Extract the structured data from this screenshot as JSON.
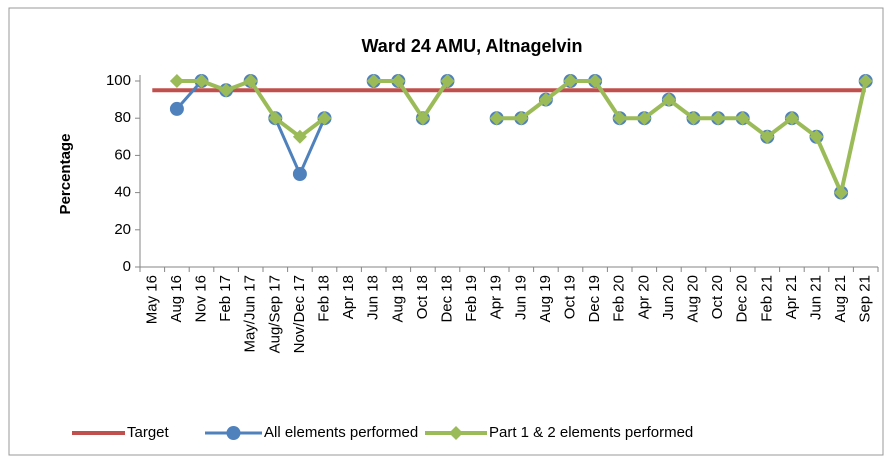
{
  "chart_data": {
    "type": "line",
    "title": "Ward 24 AMU, Altnagelvin",
    "y_label": "Percentage",
    "categories": [
      "May 16",
      "Aug 16",
      "Nov 16",
      "Feb 17",
      "May/Jun 17",
      "Aug/Sep 17",
      "Nov/Dec 17",
      "Feb 18",
      "Apr 18",
      "Jun 18",
      "Aug 18",
      "Oct 18",
      "Dec 18",
      "Feb 19",
      "Apr 19",
      "Jun 19",
      "Aug 19",
      "Oct 19",
      "Dec 19",
      "Feb 20",
      "Apr 20",
      "Jun 20",
      "Aug 20",
      "Oct 20",
      "Dec 20",
      "Feb 21",
      "Apr 21",
      "Jun 21",
      "Aug 21",
      "Sep 21"
    ],
    "series": [
      {
        "name": "Target",
        "color": "#c0504d",
        "marker": "none",
        "values": [
          95,
          95,
          95,
          95,
          95,
          95,
          95,
          95,
          95,
          95,
          95,
          95,
          95,
          95,
          95,
          95,
          95,
          95,
          95,
          95,
          95,
          95,
          95,
          95,
          95,
          95,
          95,
          95,
          95,
          95
        ]
      },
      {
        "name": "All elements performed",
        "color": "#4f81bd",
        "marker": "circle",
        "values": [
          null,
          85,
          100,
          95,
          100,
          80,
          50,
          80,
          null,
          100,
          100,
          80,
          100,
          null,
          80,
          80,
          90,
          100,
          100,
          80,
          80,
          90,
          80,
          80,
          80,
          70,
          80,
          70,
          40,
          100
        ]
      },
      {
        "name": "Part 1 & 2 elements performed",
        "color": "#9bbb59",
        "marker": "diamond",
        "values": [
          null,
          100,
          100,
          95,
          100,
          80,
          70,
          80,
          null,
          100,
          100,
          80,
          100,
          null,
          80,
          80,
          90,
          100,
          100,
          80,
          80,
          90,
          80,
          80,
          80,
          70,
          80,
          70,
          40,
          100
        ]
      }
    ],
    "ylim": [
      0,
      100
    ],
    "yticks": [
      0,
      20,
      40,
      60,
      80,
      100
    ],
    "grid": false,
    "legend": "bottom"
  }
}
